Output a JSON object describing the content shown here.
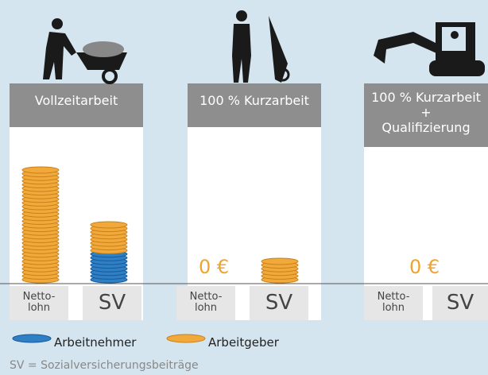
{
  "panels": [
    {
      "title": [
        "Vollzeitarbeit"
      ],
      "netto": [
        "Netto-",
        "lohn"
      ],
      "sv": "SV"
    },
    {
      "title": [
        "100 % Kurzarbeit"
      ],
      "netto": [
        "Netto-",
        "lohn"
      ],
      "sv": "SV",
      "zero": "0 €"
    },
    {
      "title": [
        "100 % Kurzarbeit",
        "+",
        "Qualifizierung"
      ],
      "netto": [
        "Netto-",
        "lohn"
      ],
      "sv": "SV",
      "zero": "0 €"
    }
  ],
  "legend": [
    "Arbeitnehmer",
    "Arbeitgeber"
  ],
  "footnote": "SV = Sozialversicherungsbeiträge"
}
